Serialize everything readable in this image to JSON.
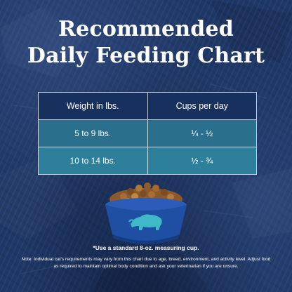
{
  "title": {
    "line1": "Recommended",
    "line2": "Daily Feeding Chart"
  },
  "table": {
    "headers": [
      "Weight in lbs.",
      "Cups per day"
    ],
    "rows": [
      {
        "weight": "5 to 9 lbs.",
        "cups": "¼ - ½"
      },
      {
        "weight": "10 to 14 lbs.",
        "cups": "½ - ¾"
      }
    ]
  },
  "bowl": {
    "icon": "bison-logo-icon",
    "bowl_color": "#1f4fa3",
    "logo_color": "#3fb8c8"
  },
  "footnotes": {
    "measure": "*Use a standard 8-oz. measuring cup.",
    "disclaimer": "Note: Individual cat's requirements may vary from this chart due to age, breed, environment, and activity level. Adjust food as required to maintain optimal body condition and ask your veterinarian if you are unsure."
  },
  "colors": {
    "background": "#1f3766",
    "header_row": "#17305d",
    "row_1": "#2a6f8c",
    "row_2": "#2e7f99"
  }
}
